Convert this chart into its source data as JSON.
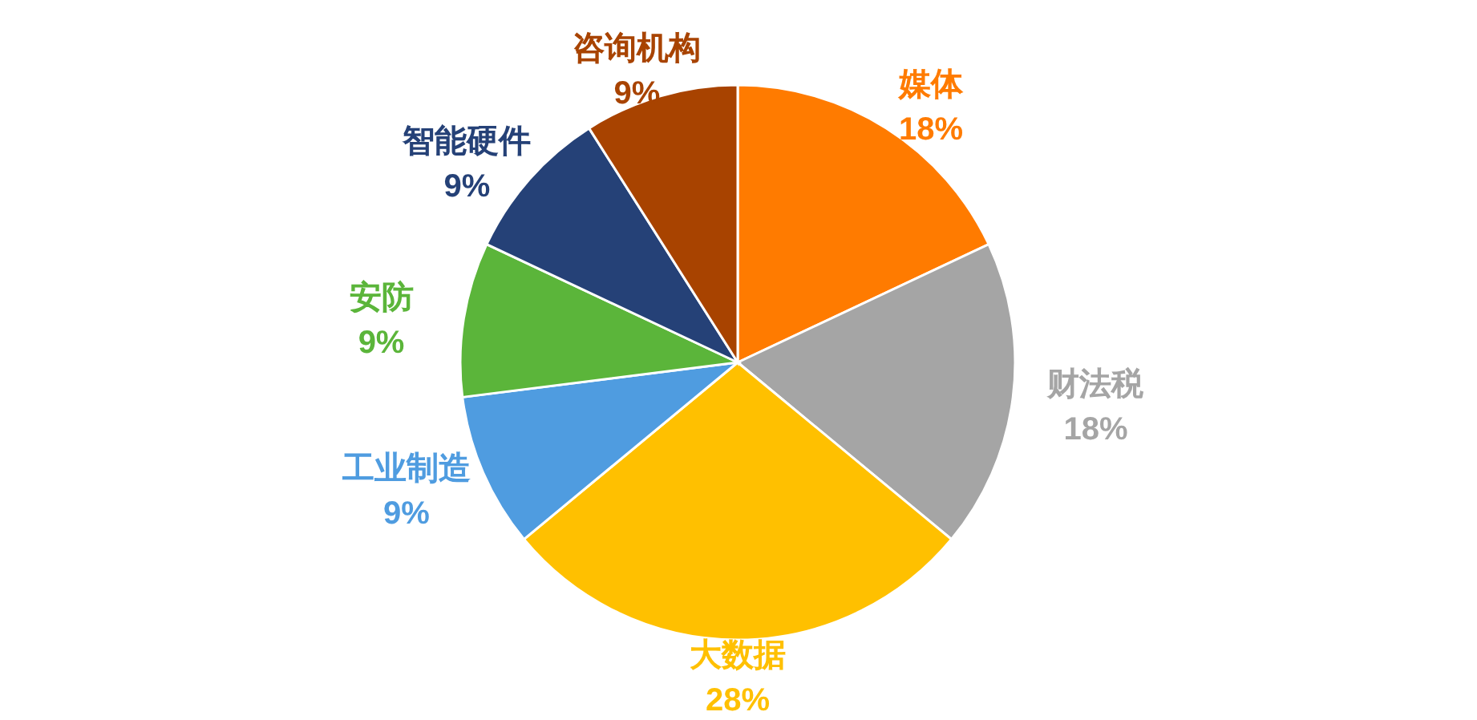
{
  "chart_data": {
    "type": "pie",
    "categories": [
      "媒体",
      "财法税",
      "大数据",
      "工业制造",
      "安防",
      "智能硬件",
      "咨询机构"
    ],
    "values": [
      18,
      18,
      28,
      9,
      9,
      9,
      9
    ],
    "colors": [
      "#ff7b00",
      "#a5a5a5",
      "#ffc000",
      "#4f9ce0",
      "#5bb53a",
      "#254177",
      "#a84300"
    ],
    "value_labels": [
      "18%",
      "18%",
      "28%",
      "9%",
      "9%",
      "9%",
      "9%"
    ]
  }
}
